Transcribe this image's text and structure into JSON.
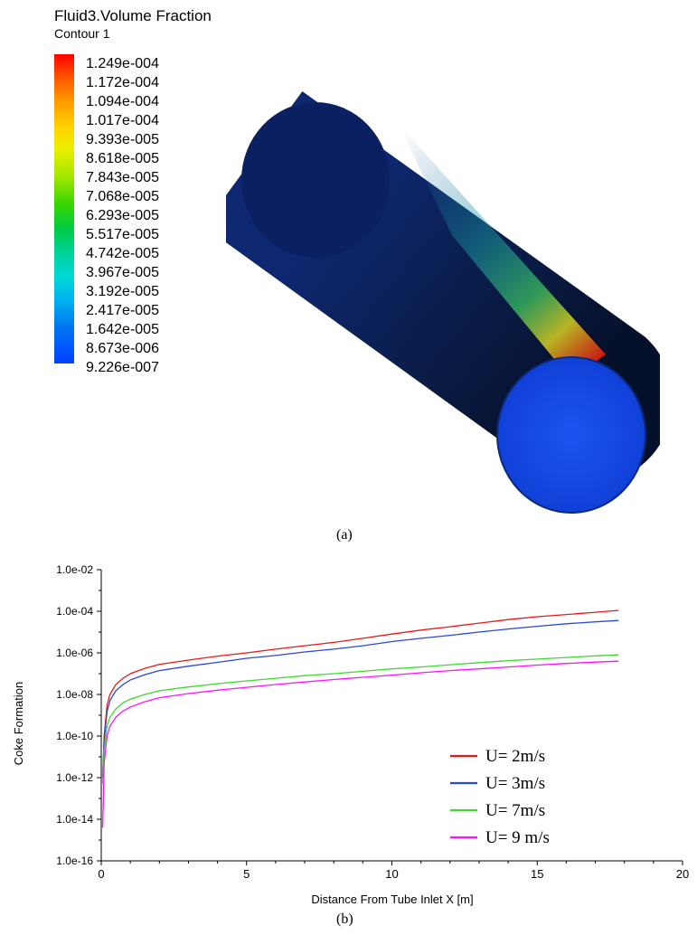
{
  "contour": {
    "title": "Fluid3.Volume Fraction",
    "subtitle": "Contour 1",
    "legend_labels": [
      "1.249e-004",
      "1.172e-004",
      "1.094e-004",
      "1.017e-004",
      "9.393e-005",
      "8.618e-005",
      "7.843e-005",
      "7.068e-005",
      "6.293e-005",
      "5.517e-005",
      "4.742e-005",
      "3.967e-005",
      "3.192e-005",
      "2.417e-005",
      "1.642e-005",
      "8.673e-006",
      "9.226e-007"
    ],
    "colors": {
      "low": "#0040ff",
      "mid": "#00cc40",
      "high": "#ff0000",
      "tube_body": "#0a1f5a"
    }
  },
  "captions": {
    "a": "(a)",
    "b": "(b)"
  },
  "chart_data": {
    "type": "line",
    "xlabel": "Distance From Tube Inlet X [m]",
    "ylabel": "Coke Formation",
    "xlim": [
      0,
      20
    ],
    "ylim": [
      1e-16,
      0.01
    ],
    "yscale": "log",
    "xticks": [
      "0",
      "5",
      "10",
      "15",
      "20"
    ],
    "yticks": [
      "1.0e-02",
      "1.0e-04",
      "1.0e-06",
      "1.0e-08",
      "1.0e-10",
      "1.0e-12",
      "1.0e-14",
      "1.0e-16"
    ],
    "legend_position": "bottom-right",
    "x": [
      0.05,
      0.1,
      0.2,
      0.3,
      0.5,
      0.75,
      1,
      1.5,
      2,
      3,
      4,
      5,
      6,
      7,
      8,
      9,
      10,
      11,
      12,
      13,
      14,
      15,
      16,
      17,
      17.8
    ],
    "series": [
      {
        "name": "U= 2m/s",
        "color": "#e81818",
        "values": [
          1e-12,
          1e-10,
          3e-09,
          1e-08,
          3e-08,
          6e-08,
          1e-07,
          1.8e-07,
          2.8e-07,
          4.5e-07,
          7e-07,
          1e-06,
          1.5e-06,
          2.2e-06,
          3.2e-06,
          5e-06,
          8e-06,
          1.25e-05,
          1.8e-05,
          2.7e-05,
          4e-05,
          5.5e-05,
          7e-05,
          9e-05,
          0.00011
        ]
      },
      {
        "name": "U= 3m/s",
        "color": "#2848d8",
        "values": [
          1e-12,
          6e-11,
          1.5e-09,
          5e-09,
          1.5e-08,
          3e-08,
          5e-08,
          9e-08,
          1.4e-07,
          2.3e-07,
          3.5e-07,
          5.5e-07,
          7.5e-07,
          1.1e-06,
          1.5e-06,
          2.2e-06,
          3.5e-06,
          5e-06,
          7e-06,
          1e-05,
          1.4e-05,
          1.9e-05,
          2.5e-05,
          3.1e-05,
          3.6e-05
        ]
      },
      {
        "name": "U= 7m/s",
        "color": "#40d830",
        "values": [
          5e-13,
          2e-11,
          3e-10,
          8e-10,
          2e-09,
          4e-09,
          6e-09,
          1e-08,
          1.5e-08,
          2.3e-08,
          3.3e-08,
          4.5e-08,
          6e-08,
          8e-08,
          1e-07,
          1.3e-07,
          1.7e-07,
          2.1e-07,
          2.7e-07,
          3.4e-07,
          4.2e-07,
          5e-07,
          6e-07,
          7.2e-07,
          8e-07
        ]
      },
      {
        "name": "U= 9 m/s",
        "color": "#ff10ff",
        "values": [
          4e-15,
          5e-12,
          1e-10,
          3e-10,
          8e-10,
          1.6e-09,
          2.5e-09,
          4.5e-09,
          7e-09,
          1.1e-08,
          1.6e-08,
          2.2e-08,
          3e-08,
          4e-08,
          5.2e-08,
          6.7e-08,
          8.5e-08,
          1.1e-07,
          1.4e-07,
          1.7e-07,
          2.1e-07,
          2.6e-07,
          3.1e-07,
          3.6e-07,
          4e-07
        ]
      }
    ]
  }
}
